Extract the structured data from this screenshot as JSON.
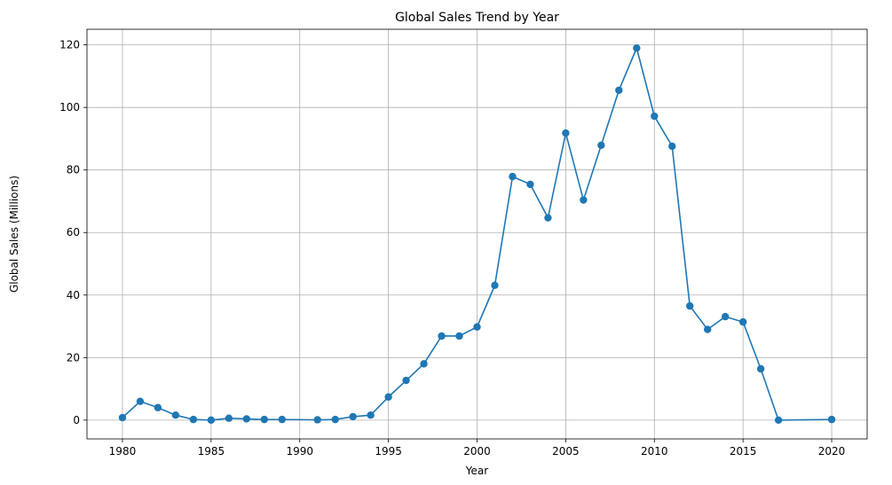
{
  "chart_data": {
    "type": "line",
    "title": "Global Sales Trend by Year",
    "xlabel": "Year",
    "ylabel": "Global Sales (Millions)",
    "xlim": [
      1978,
      2022
    ],
    "ylim": [
      -6,
      125
    ],
    "xticks": [
      1980,
      1985,
      1990,
      1995,
      2000,
      2005,
      2010,
      2015,
      2020
    ],
    "yticks": [
      0,
      20,
      40,
      60,
      80,
      100,
      120
    ],
    "grid": true,
    "marker": "circle",
    "color": "#1f77b4",
    "series": [
      {
        "x": [
          1980,
          1981,
          1982,
          1983,
          1984,
          1985,
          1986,
          1987,
          1988,
          1989,
          1991,
          1992,
          1993,
          1994,
          1995,
          1996,
          1997,
          1998,
          1999,
          2000,
          2001,
          2002,
          2003,
          2004,
          2005,
          2006,
          2007,
          2008,
          2009,
          2010,
          2011,
          2012,
          2013,
          2014,
          2015,
          2016,
          2017,
          2020
        ],
        "y": [
          0.8,
          6.0,
          4.0,
          1.6,
          0.2,
          0.0,
          0.6,
          0.4,
          0.2,
          0.2,
          0.1,
          0.2,
          1.1,
          1.6,
          7.4,
          12.7,
          18.0,
          26.9,
          26.9,
          29.8,
          43.1,
          77.9,
          75.4,
          64.7,
          91.8,
          70.4,
          87.9,
          105.5,
          119.0,
          97.2,
          87.6,
          36.5,
          29.0,
          33.1,
          31.4,
          16.4,
          0.0,
          0.2
        ]
      }
    ]
  }
}
